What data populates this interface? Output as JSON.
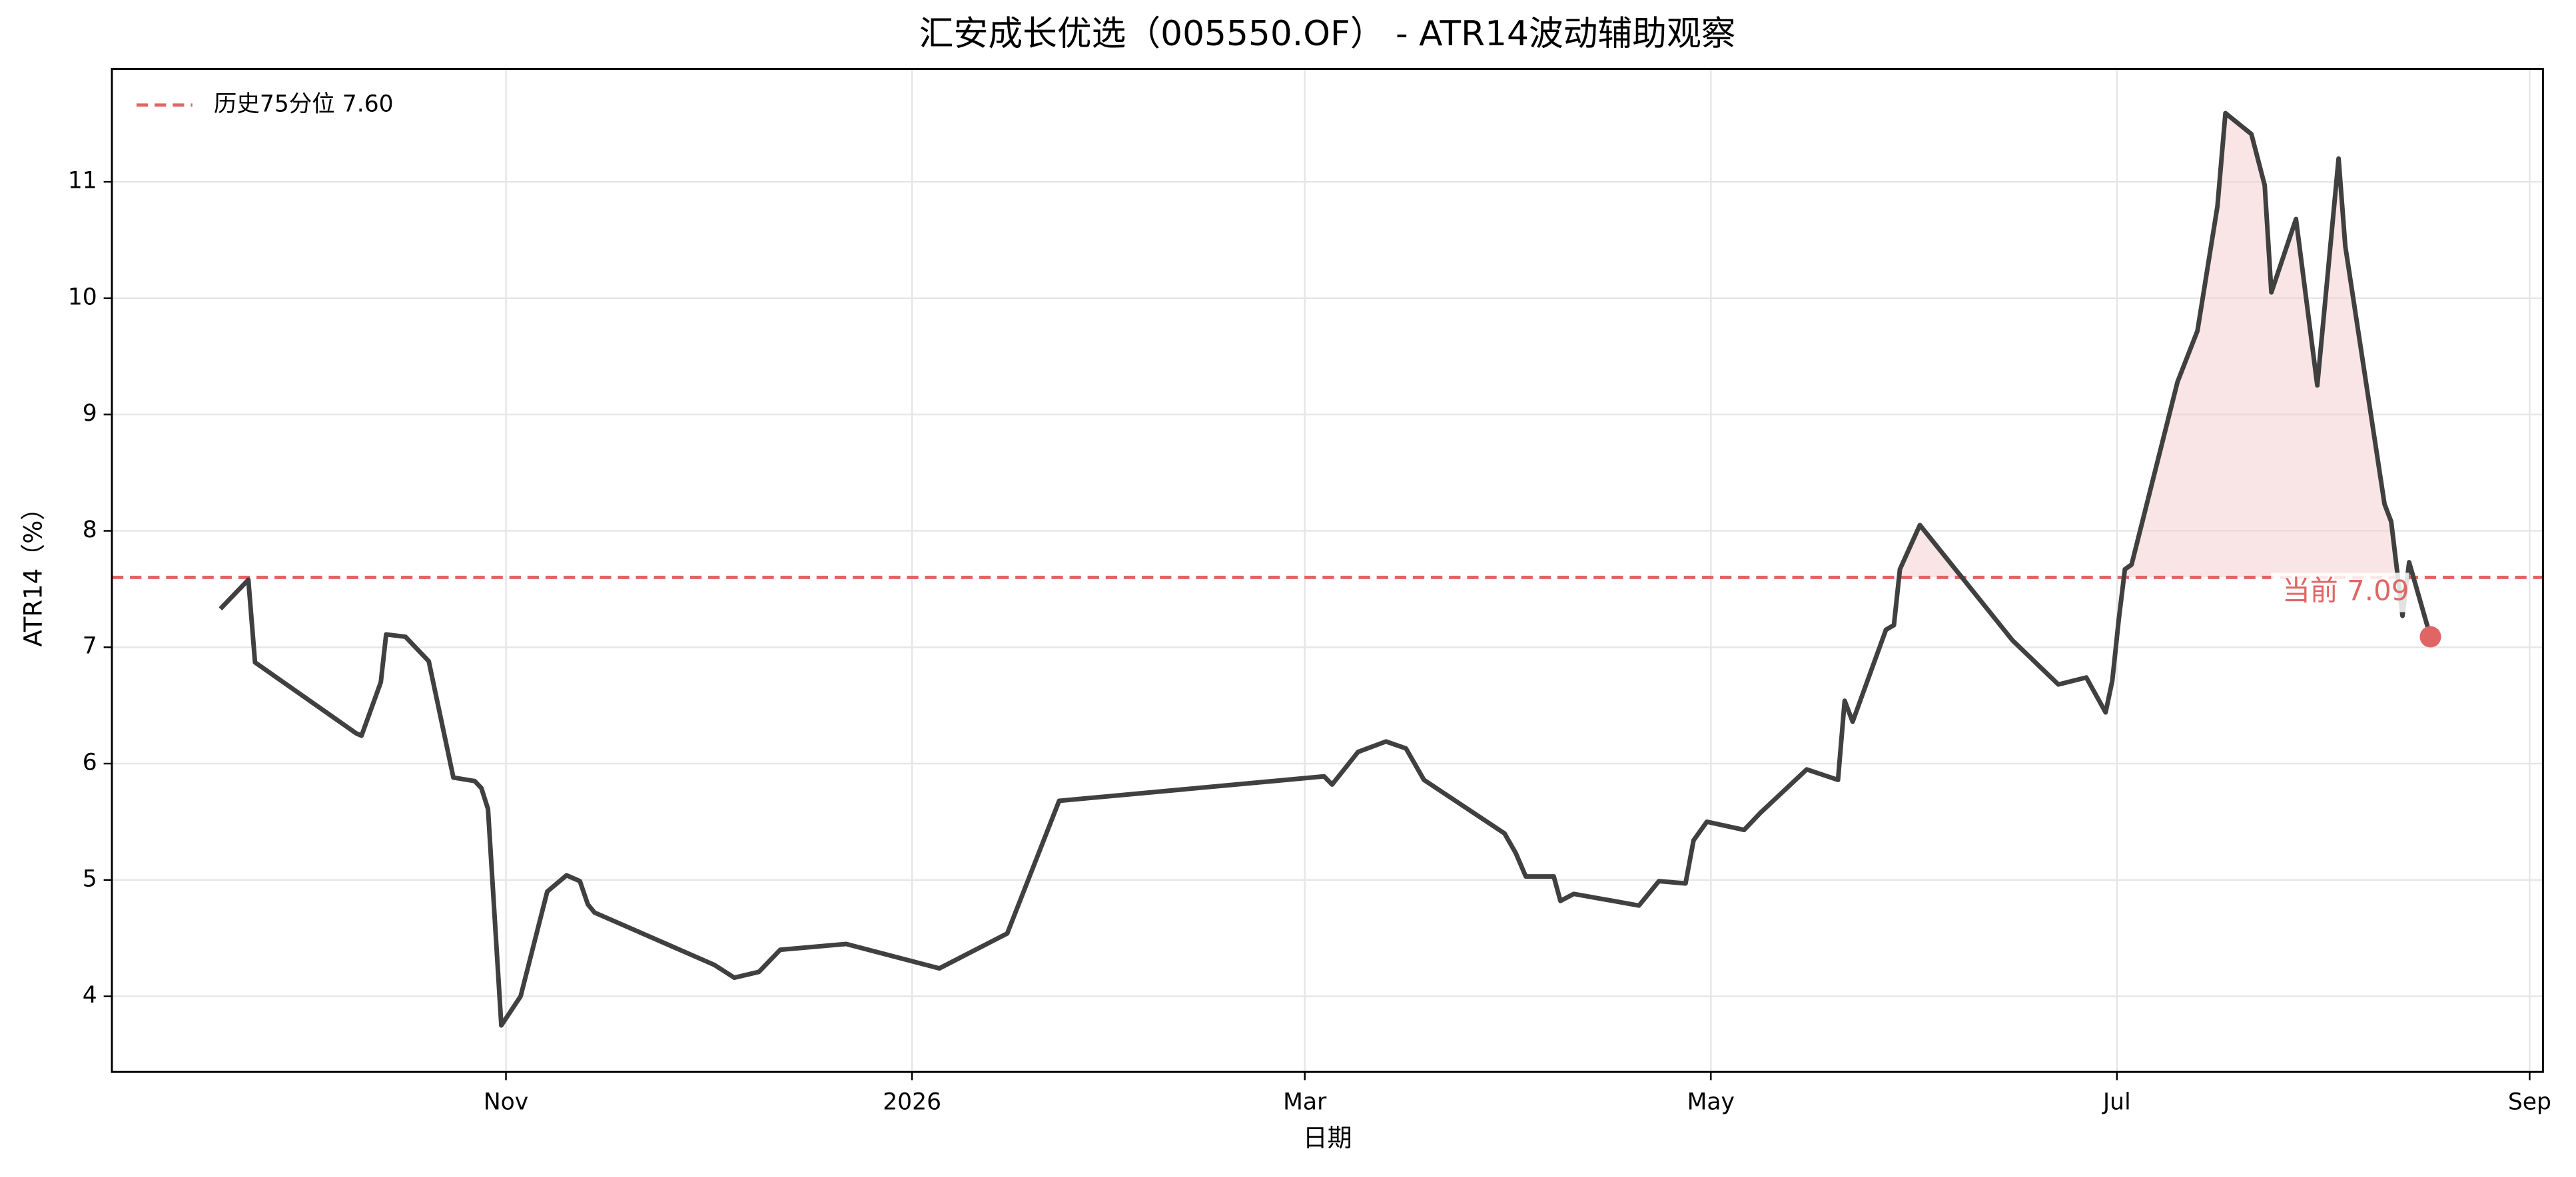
{
  "chart_data": {
    "type": "line",
    "title": "汇安成长优选（005550.OF） - ATR14波动辅助观察",
    "x_label": "日期",
    "y_label": "ATR14（%）",
    "x": [
      -42.9,
      -38.7,
      -37.7,
      -22.5,
      -21.7,
      -18.8,
      -18.0,
      -15.1,
      -11.6,
      -7.9,
      -4.7,
      -3.7,
      -2.7,
      -0.7,
      2.2,
      6.2,
      9.1,
      11.1,
      12.3,
      13.3,
      31.3,
      34.3,
      38.0,
      41.2,
      51.1,
      65.1,
      75.3,
      83.1,
      122.9,
      124.1,
      128.0,
      132.2,
      135.2,
      137.9,
      150.0,
      151.7,
      153.2,
      157.4,
      158.4,
      160.4,
      170.2,
      173.2,
      177.2,
      178.4,
      180.4,
      186.0,
      188.5,
      195.4,
      200.1,
      201.1,
      202.3,
      207.3,
      208.5,
      209.4,
      212.4,
      226.3,
      233.2,
      237.4,
      240.3,
      241.3,
      242.3,
      243.2,
      244.2,
      251.1,
      254.1,
      257.1,
      258.3,
      262.2,
      264.2,
      265.2,
      268.9,
      272.1,
      275.3,
      276.3,
      282.2,
      283.2,
      284.9,
      285.9,
      289.1
    ],
    "series": [
      {
        "color": "#404040",
        "values": [
          7.33,
          7.58,
          6.87,
          6.26,
          6.24,
          6.7,
          7.11,
          7.09,
          6.88,
          5.88,
          5.85,
          5.79,
          5.61,
          3.75,
          4.0,
          4.9,
          5.04,
          4.99,
          4.79,
          4.72,
          4.27,
          4.16,
          4.21,
          4.4,
          4.45,
          4.24,
          4.54,
          5.68,
          5.89,
          5.82,
          6.1,
          6.19,
          6.13,
          5.86,
          5.4,
          5.23,
          5.03,
          5.03,
          4.82,
          4.88,
          4.78,
          4.99,
          4.97,
          5.34,
          5.5,
          5.43,
          5.58,
          5.95,
          5.86,
          6.54,
          6.36,
          7.15,
          7.19,
          7.67,
          8.05,
          7.06,
          6.68,
          6.74,
          6.44,
          6.71,
          7.25,
          7.67,
          7.71,
          9.28,
          9.72,
          10.79,
          11.59,
          11.41,
          10.97,
          10.05,
          10.68,
          9.25,
          11.2,
          10.45,
          8.23,
          8.08,
          7.27,
          7.73,
          7.09
        ]
      }
    ],
    "threshold": {
      "value": 7.6,
      "label": "历史75分位 7.60",
      "color": "#e06666",
      "fill": "#f4cccc"
    },
    "current_label": "当前 7.09",
    "xlim": [
      -59.2,
      306
    ],
    "ylim": [
      3.35,
      11.97
    ],
    "xticks": [
      {
        "value": 0,
        "label": "Nov"
      },
      {
        "value": 61,
        "label": "2026"
      },
      {
        "value": 120,
        "label": "Mar"
      },
      {
        "value": 181,
        "label": "May"
      },
      {
        "value": 242,
        "label": "Jul"
      },
      {
        "value": 304,
        "label": "Sep"
      }
    ],
    "yticks": [
      4,
      5,
      6,
      7,
      8,
      9,
      10,
      11
    ],
    "grid": true,
    "legend": "upper left"
  }
}
